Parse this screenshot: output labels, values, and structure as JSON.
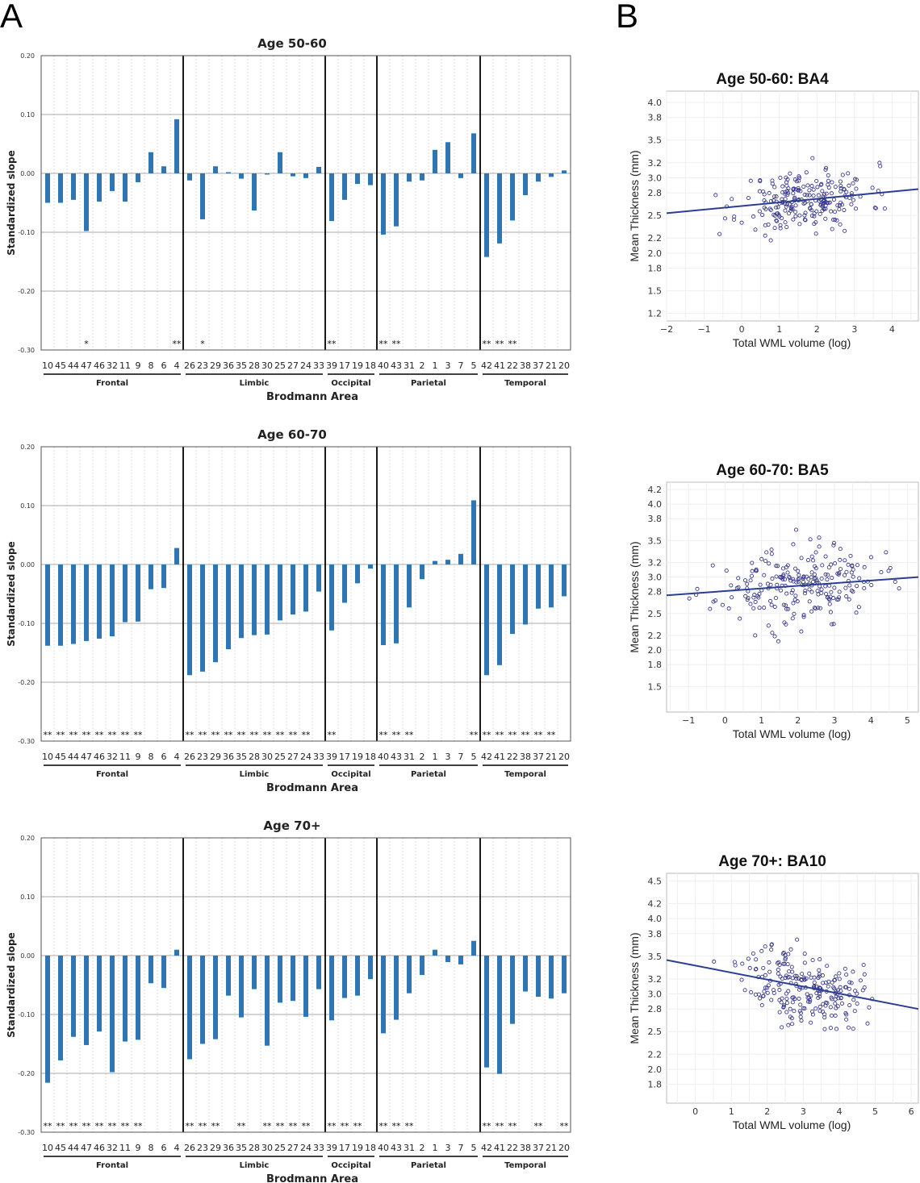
{
  "panels": {
    "a": "A",
    "b": "B"
  },
  "colors": {
    "bar": "#2e75b6",
    "point": "#3a3a8c",
    "fit": "#2c3e94"
  },
  "bar_charts": {
    "ylabel": "Standardized slope",
    "xlabel": "Brodmann Area",
    "yticks": [
      "0.20",
      "0.10",
      "0.00",
      "-0.10",
      "-0.20",
      "-0.30"
    ],
    "categories": [
      "10",
      "45",
      "44",
      "47",
      "46",
      "32",
      "11",
      "9",
      "8",
      "6",
      "4",
      "26",
      "23",
      "29",
      "36",
      "35",
      "28",
      "30",
      "25",
      "27",
      "24",
      "33",
      "39",
      "17",
      "19",
      "18",
      "40",
      "43",
      "31",
      "2",
      "1",
      "3",
      "7",
      "5",
      "42",
      "41",
      "22",
      "38",
      "37",
      "21",
      "20"
    ],
    "groups": [
      {
        "name": "Frontal",
        "start": 0,
        "end": 10
      },
      {
        "name": "Limbic",
        "start": 11,
        "end": 21
      },
      {
        "name": "Occipital",
        "start": 22,
        "end": 25
      },
      {
        "name": "Parietal",
        "start": 26,
        "end": 33
      },
      {
        "name": "Temporal",
        "start": 34,
        "end": 40
      }
    ]
  },
  "scatter_charts": {
    "xlabel": "Total WML volume (log)",
    "ylabel": "Mean Thickness (mm)"
  },
  "chart_data": [
    {
      "type": "bar",
      "title": "Age 50-60",
      "ylim": [
        -0.3,
        0.2
      ],
      "values": [
        -0.05,
        -0.05,
        -0.045,
        -0.098,
        -0.048,
        -0.03,
        -0.048,
        -0.015,
        0.036,
        0.012,
        0.092,
        -0.012,
        -0.078,
        0.012,
        0.002,
        -0.009,
        -0.063,
        -0.002,
        0.036,
        -0.005,
        -0.008,
        0.011,
        -0.081,
        -0.045,
        -0.018,
        -0.02,
        -0.104,
        -0.09,
        -0.014,
        -0.012,
        0.04,
        0.053,
        -0.008,
        0.068,
        -0.142,
        -0.119,
        -0.08,
        -0.037,
        -0.014,
        -0.006,
        0.005
      ],
      "stars": [
        "",
        "",
        "",
        "*",
        "",
        "",
        "",
        "",
        "",
        "",
        "**",
        "",
        "*",
        "",
        "",
        "",
        "",
        "",
        "",
        "",
        "",
        "",
        "**",
        "",
        "",
        "",
        "**",
        "**",
        "",
        "",
        "",
        "",
        "",
        "",
        "**",
        "**",
        "**",
        "",
        "",
        "",
        ""
      ]
    },
    {
      "type": "bar",
      "title": "Age 60-70",
      "ylim": [
        -0.3,
        0.2
      ],
      "values": [
        -0.138,
        -0.138,
        -0.135,
        -0.13,
        -0.126,
        -0.122,
        -0.098,
        -0.097,
        -0.042,
        -0.04,
        0.028,
        -0.188,
        -0.182,
        -0.166,
        -0.144,
        -0.125,
        -0.12,
        -0.119,
        -0.095,
        -0.085,
        -0.08,
        -0.046,
        -0.112,
        -0.065,
        -0.032,
        -0.007,
        -0.137,
        -0.134,
        -0.073,
        -0.025,
        0.006,
        0.008,
        0.018,
        0.109,
        -0.188,
        -0.171,
        -0.118,
        -0.102,
        -0.075,
        -0.073,
        -0.054
      ],
      "stars": [
        "**",
        "**",
        "**",
        "**",
        "**",
        "**",
        "**",
        "**",
        "",
        "",
        "",
        "**",
        "**",
        "**",
        "**",
        "**",
        "**",
        "**",
        "**",
        "**",
        "**",
        "",
        "**",
        "",
        "",
        "",
        "**",
        "**",
        "**",
        "",
        "",
        "",
        "",
        "**",
        "**",
        "**",
        "**",
        "**",
        "**",
        "**",
        ""
      ]
    },
    {
      "type": "bar",
      "title": "Age 70+",
      "ylim": [
        -0.3,
        0.2
      ],
      "values": [
        -0.216,
        -0.178,
        -0.138,
        -0.152,
        -0.129,
        -0.198,
        -0.146,
        -0.143,
        -0.047,
        -0.055,
        0.01,
        -0.176,
        -0.15,
        -0.142,
        -0.068,
        -0.105,
        -0.057,
        -0.153,
        -0.08,
        -0.077,
        -0.104,
        -0.057,
        -0.11,
        -0.072,
        -0.068,
        -0.04,
        -0.132,
        -0.109,
        -0.064,
        -0.033,
        0.01,
        -0.011,
        -0.015,
        0.025,
        -0.19,
        -0.201,
        -0.116,
        -0.061,
        -0.07,
        -0.073,
        -0.064
      ],
      "stars": [
        "**",
        "**",
        "**",
        "**",
        "**",
        "**",
        "**",
        "**",
        "",
        "",
        "",
        "**",
        "**",
        "**",
        "",
        "**",
        "",
        "**",
        "**",
        "**",
        "**",
        "",
        "**",
        "**",
        "**",
        "",
        "**",
        "**",
        "**",
        "",
        "",
        "",
        "",
        "",
        "**",
        "**",
        "**",
        "",
        "**",
        "",
        "**"
      ]
    },
    {
      "type": "scatter",
      "title": "Age 50-60: BA4",
      "xlim": [
        -2,
        4.7
      ],
      "ylim": [
        1.1,
        4.15
      ],
      "xticks": [
        -2,
        -1,
        0,
        1,
        2,
        3,
        4
      ],
      "yticks": [
        "1.2",
        "1.5",
        "1.8",
        "2.0",
        "2.2",
        "2.5",
        "2.8",
        "3.0",
        "3.2",
        "3.5",
        "3.8",
        "4.0"
      ],
      "fit": {
        "x": [
          -2,
          4.7
        ],
        "y": [
          2.53,
          2.85
        ]
      },
      "seed": 11,
      "n": 230,
      "center": [
        1.7,
        2.62
      ],
      "spread": [
        0.85,
        0.2
      ]
    },
    {
      "type": "scatter",
      "title": "Age 60-70: BA5",
      "xlim": [
        -1.6,
        5.3
      ],
      "ylim": [
        1.15,
        4.3
      ],
      "xticks": [
        -1,
        0,
        1,
        2,
        3,
        4,
        5
      ],
      "yticks": [
        "1.5",
        "1.8",
        "2.0",
        "2.2",
        "2.5",
        "2.8",
        "3.0",
        "3.2",
        "3.5",
        "3.8",
        "4.0",
        "4.2"
      ],
      "fit": {
        "x": [
          -1.6,
          5.3
        ],
        "y": [
          2.75,
          3.0
        ]
      },
      "seed": 23,
      "n": 230,
      "center": [
        2.0,
        2.87
      ],
      "spread": [
        1.1,
        0.25
      ]
    },
    {
      "type": "scatter",
      "title": "Age 70+: BA10",
      "xlim": [
        -0.8,
        6.2
      ],
      "ylim": [
        1.55,
        4.6
      ],
      "xticks": [
        0,
        1,
        2,
        3,
        4,
        5,
        6
      ],
      "yticks": [
        "1.8",
        "2.0",
        "2.2",
        "2.5",
        "2.8",
        "3.0",
        "3.2",
        "3.5",
        "3.8",
        "4.0",
        "4.2",
        "4.5"
      ],
      "fit": {
        "x": [
          -0.8,
          6.2
        ],
        "y": [
          3.45,
          2.8
        ]
      },
      "seed": 37,
      "n": 230,
      "center": [
        3.0,
        3.08
      ],
      "spread": [
        0.8,
        0.25
      ]
    }
  ]
}
